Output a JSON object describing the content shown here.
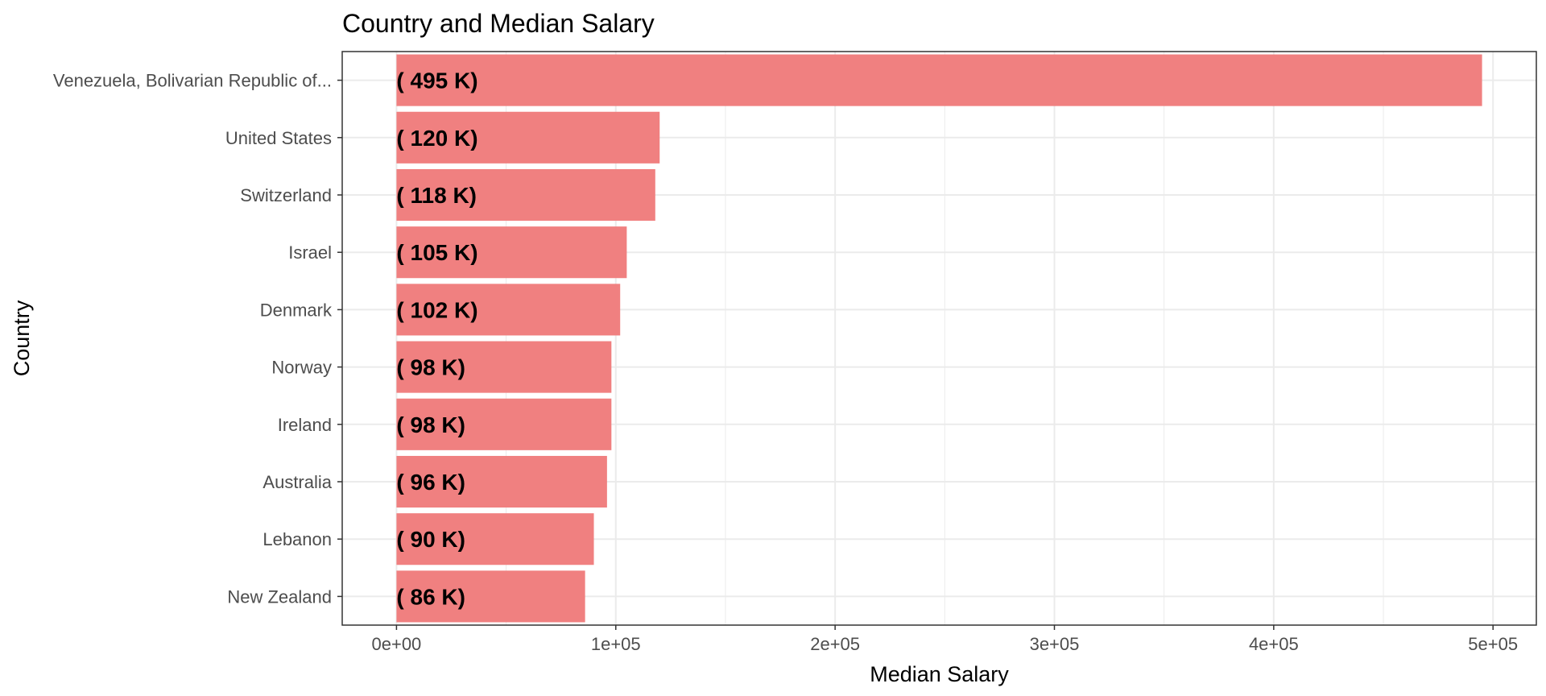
{
  "chart_data": {
    "type": "bar",
    "orientation": "horizontal",
    "title": "Country and Median Salary",
    "xlabel": "Median Salary",
    "ylabel": "Country",
    "categories": [
      "Venezuela, Bolivarian Republic of...",
      "United States",
      "Switzerland",
      "Israel",
      "Denmark",
      "Norway",
      "Ireland",
      "Australia",
      "Lebanon",
      "New Zealand"
    ],
    "values": [
      495000,
      120000,
      118000,
      105000,
      102000,
      98000,
      98000,
      96000,
      90000,
      86000
    ],
    "data_labels": [
      "( 495 K)",
      "( 120 K)",
      "( 118 K)",
      "( 105 K)",
      "( 102 K)",
      "( 98 K)",
      "( 98 K)",
      "( 96 K)",
      "( 90 K)",
      "( 86 K)"
    ],
    "x_ticks": [
      0,
      100000,
      200000,
      300000,
      400000,
      500000
    ],
    "x_tick_labels": [
      "0e+00",
      "1e+05",
      "2e+05",
      "3e+05",
      "4e+05",
      "5e+05"
    ],
    "xlim": [
      -24750,
      519750
    ],
    "grid": true,
    "legend": "none",
    "bar_color": "#F08080",
    "grid_color": "#EBEBEB",
    "panel_border_color": "#333333"
  }
}
